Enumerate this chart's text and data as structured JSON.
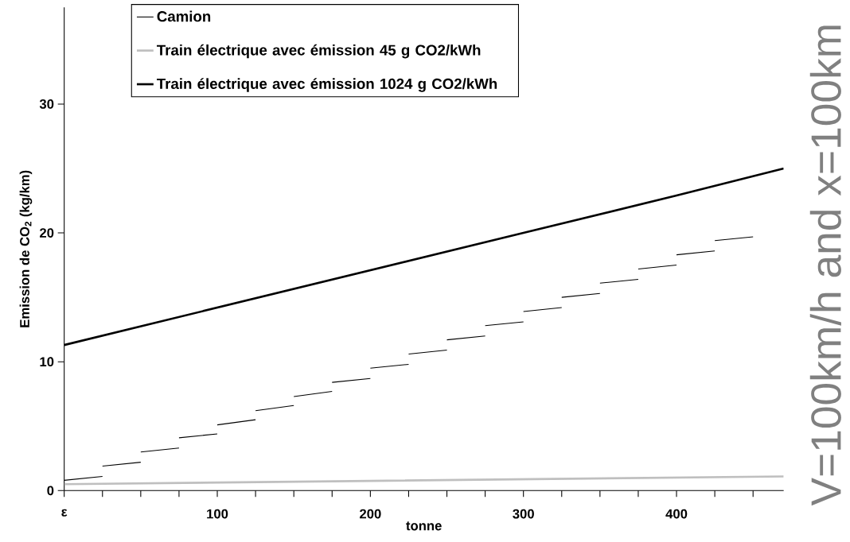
{
  "chart_data": {
    "type": "line",
    "xlabel": "tonne",
    "ylabel": "Emission de CO$_{2}$ (kg/km)",
    "xlim": [
      0,
      470
    ],
    "ylim": [
      0,
      37.5
    ],
    "xticks": [
      {
        "value": 0,
        "label": "ε"
      },
      {
        "value": 25,
        "label": null
      },
      {
        "value": 50,
        "label": null
      },
      {
        "value": 75,
        "label": null
      },
      100,
      {
        "value": 125,
        "label": null
      },
      {
        "value": 150,
        "label": null
      },
      {
        "value": 175,
        "label": null
      },
      200,
      {
        "value": 225,
        "label": null
      },
      {
        "value": 250,
        "label": null
      },
      {
        "value": 275,
        "label": null
      },
      300,
      {
        "value": 325,
        "label": null
      },
      {
        "value": 350,
        "label": null
      },
      {
        "value": 375,
        "label": null
      },
      400,
      {
        "value": 425,
        "label": null
      },
      {
        "value": 450,
        "label": null
      }
    ],
    "yticks": [
      0,
      10,
      20,
      30
    ],
    "legend": "top left",
    "annotations": [
      "V=100km/h and x=100km"
    ],
    "series": [
      {
        "name": "Camion",
        "color": "#000000",
        "x": [
          0,
          25
        ],
        "values": [
          0.8,
          1.1
        ]
      },
      {
        "color": "#000000",
        "x": [
          25,
          50
        ],
        "values": [
          1.9,
          2.2
        ]
      },
      {
        "color": "#000000",
        "x": [
          50,
          75
        ],
        "values": [
          3.0,
          3.3
        ]
      },
      {
        "color": "#000000",
        "x": [
          75,
          100
        ],
        "values": [
          4.1,
          4.4
        ]
      },
      {
        "color": "#000000",
        "x": [
          100,
          125
        ],
        "values": [
          5.1,
          5.5
        ]
      },
      {
        "color": "#000000",
        "x": [
          125,
          150
        ],
        "values": [
          6.2,
          6.6
        ]
      },
      {
        "color": "#000000",
        "x": [
          150,
          175
        ],
        "values": [
          7.3,
          7.7
        ]
      },
      {
        "color": "#000000",
        "x": [
          175,
          200
        ],
        "values": [
          8.4,
          8.7
        ]
      },
      {
        "color": "#000000",
        "x": [
          200,
          225
        ],
        "values": [
          9.5,
          9.8
        ]
      },
      {
        "color": "#000000",
        "x": [
          225,
          250
        ],
        "values": [
          10.6,
          10.9
        ]
      },
      {
        "color": "#000000",
        "x": [
          250,
          275
        ],
        "values": [
          11.7,
          12.0
        ]
      },
      {
        "color": "#000000",
        "x": [
          275,
          300
        ],
        "values": [
          12.8,
          13.1
        ]
      },
      {
        "color": "#000000",
        "x": [
          300,
          325
        ],
        "values": [
          13.9,
          14.2
        ]
      },
      {
        "color": "#000000",
        "x": [
          325,
          350
        ],
        "values": [
          15.0,
          15.3
        ]
      },
      {
        "color": "#000000",
        "x": [
          350,
          375
        ],
        "values": [
          16.1,
          16.4
        ]
      },
      {
        "color": "#000000",
        "x": [
          375,
          400
        ],
        "values": [
          17.2,
          17.5
        ]
      },
      {
        "color": "#000000",
        "x": [
          400,
          425
        ],
        "values": [
          18.3,
          18.6
        ]
      },
      {
        "color": "#000000",
        "x": [
          425,
          450
        ],
        "values": [
          19.4,
          19.7
        ]
      },
      {
        "name": "Train électrique avec émission 45 g CO2/kWh",
        "color": "#bfbfbf",
        "x": [
          0,
          200,
          470
        ],
        "values": [
          0.5,
          0.75,
          1.1
        ]
      },
      {
        "name": "Train électrique avec émission 1024 g CO2/kWh",
        "color": "#000000",
        "x": [
          0,
          100,
          200,
          300,
          400,
          470
        ],
        "values": [
          11.3,
          14.2,
          17.1,
          20.0,
          22.9,
          25.0
        ]
      }
    ]
  }
}
